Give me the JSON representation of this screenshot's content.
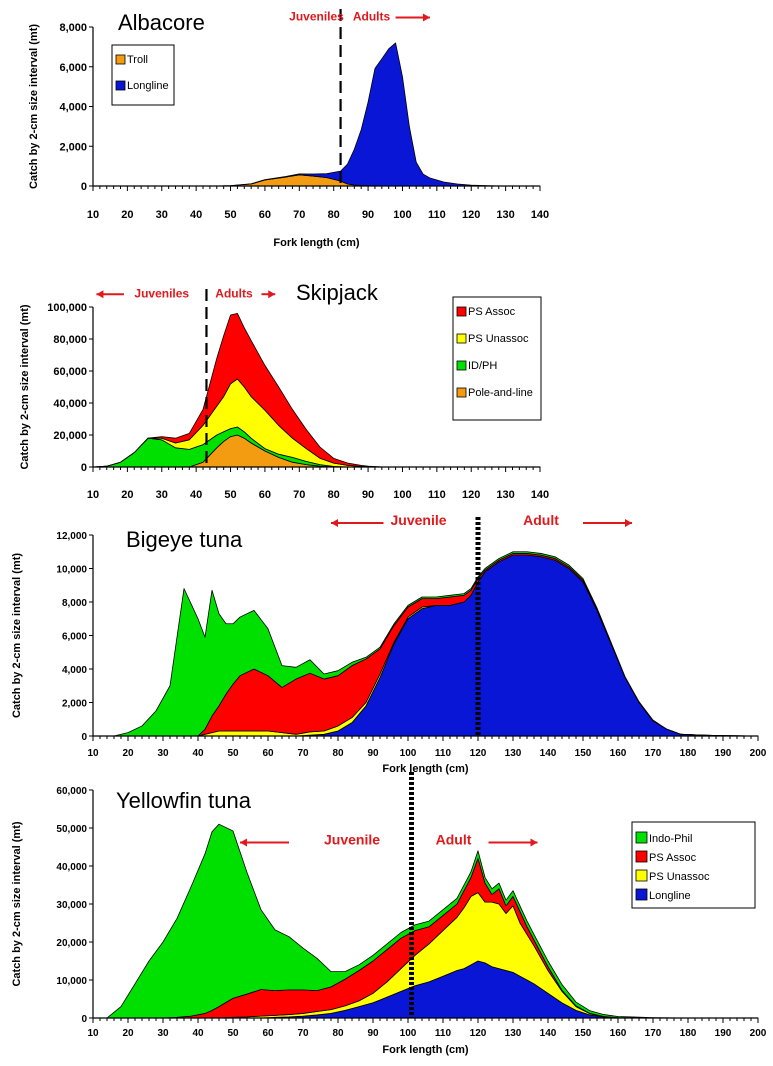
{
  "chart_data": [
    {
      "type": "area",
      "title": "Albacore",
      "xlabel": "Fork length (cm)",
      "ylabel": "Catch by 2-cm size interval (mt)",
      "xlim": [
        10,
        140
      ],
      "ylim": [
        0,
        8000
      ],
      "xticks": [
        10,
        20,
        30,
        40,
        50,
        60,
        70,
        80,
        90,
        100,
        110,
        120,
        130,
        140
      ],
      "yticks": [
        0,
        2000,
        4000,
        6000,
        8000
      ],
      "ytick_labels": [
        "0",
        "2,000",
        "4,000",
        "6,000",
        "8,000"
      ],
      "stack_order": [
        "Troll",
        "Longline"
      ],
      "legend": [
        "Troll",
        "Longline"
      ],
      "legend_labels": [
        "Troll",
        "Longline"
      ],
      "colors": {
        "Troll": "#f39c12",
        "Longline": "#0a16d6"
      },
      "boundary_x": 82,
      "annotations": [
        {
          "text": "Juveniles",
          "x": 75,
          "y_frac": 1.04,
          "size": 12,
          "anchor": "middle"
        },
        {
          "text": "Adults",
          "x": 91,
          "y_frac": 1.04,
          "size": 12,
          "anchor": "middle"
        }
      ],
      "arrows": [
        {
          "x1": 98,
          "x2": 108,
          "y_frac": 1.06
        }
      ],
      "x": [
        10,
        20,
        30,
        40,
        46,
        50,
        56,
        60,
        66,
        70,
        74,
        78,
        82,
        84,
        86,
        88,
        90,
        92,
        94,
        96,
        98,
        100,
        102,
        104,
        106,
        108,
        110,
        112,
        116,
        120,
        126,
        130,
        140
      ],
      "series": [
        {
          "name": "Troll",
          "values": [
            0,
            0,
            0,
            0,
            0,
            20,
            100,
            300,
            450,
            560,
            500,
            420,
            250,
            100,
            50,
            30,
            20,
            10,
            0,
            0,
            0,
            0,
            0,
            0,
            0,
            0,
            0,
            0,
            0,
            0,
            0,
            0,
            0
          ]
        },
        {
          "name": "Longline",
          "values": [
            0,
            0,
            0,
            0,
            0,
            0,
            10,
            20,
            30,
            50,
            100,
            200,
            500,
            1000,
            1800,
            2800,
            4200,
            5900,
            6400,
            6900,
            7200,
            5500,
            3000,
            1200,
            600,
            400,
            300,
            200,
            100,
            40,
            10,
            0,
            0
          ]
        }
      ]
    },
    {
      "type": "area",
      "title": "Skipjack",
      "xlabel": "",
      "ylabel": "Catch by 2-cm size interval (mt)",
      "xlim": [
        10,
        140
      ],
      "ylim": [
        0,
        100000
      ],
      "xticks": [
        10,
        20,
        30,
        40,
        50,
        60,
        70,
        80,
        90,
        100,
        110,
        120,
        130,
        140
      ],
      "yticks": [
        0,
        20000,
        40000,
        60000,
        80000,
        100000
      ],
      "ytick_labels": [
        "0",
        "20,000",
        "40,000",
        "60,000",
        "80,000",
        "100,000"
      ],
      "stack_order": [
        "Pole-and-line",
        "ID/PH",
        "PS Unassoc",
        "PS Assoc"
      ],
      "legend": [
        "PS Assoc",
        "PS Unassoc",
        "ID/PH",
        "Pole-and-line"
      ],
      "legend_labels": [
        "PS Assoc",
        "PS Unassoc",
        "ID/PH",
        "Pole-and-line"
      ],
      "colors": {
        "PS Assoc": "#ff0000",
        "PS Unassoc": "#ffff00",
        "ID/PH": "#00e000",
        "Pole-and-line": "#f39c12"
      },
      "boundary_x": 43,
      "annotations": [
        {
          "text": "Juveniles",
          "x": 30,
          "y_frac": 1.06,
          "size": 12,
          "anchor": "middle"
        },
        {
          "text": "Adults",
          "x": 51,
          "y_frac": 1.06,
          "size": 12,
          "anchor": "middle"
        }
      ],
      "arrows": [
        {
          "x1": 19,
          "x2": 11,
          "y_frac": 1.08
        },
        {
          "x1": 59,
          "x2": 63,
          "y_frac": 1.08
        }
      ],
      "x": [
        10,
        14,
        18,
        22,
        26,
        30,
        34,
        38,
        42,
        46,
        48,
        50,
        52,
        54,
        56,
        60,
        64,
        68,
        72,
        76,
        80,
        84,
        88,
        90,
        94,
        100,
        110,
        140
      ],
      "series": [
        {
          "name": "Pole-and-line",
          "values": [
            0,
            0,
            0,
            0,
            0,
            0,
            0,
            0,
            3000,
            12000,
            16000,
            19000,
            20000,
            18000,
            15000,
            10000,
            6000,
            3000,
            1500,
            500,
            200,
            0,
            0,
            0,
            0,
            0,
            0,
            0
          ]
        },
        {
          "name": "ID/PH",
          "values": [
            0,
            500,
            3000,
            9000,
            18000,
            17000,
            12000,
            11000,
            11000,
            8000,
            6000,
            5000,
            5000,
            4000,
            3000,
            1500,
            2000,
            3000,
            2000,
            1000,
            200,
            0,
            0,
            0,
            0,
            0,
            0,
            0
          ]
        },
        {
          "name": "PS Unassoc",
          "values": [
            0,
            0,
            0,
            0,
            0,
            1000,
            3000,
            6000,
            12000,
            18000,
            22000,
            28000,
            30000,
            28000,
            26000,
            24000,
            18000,
            12000,
            8000,
            4000,
            2000,
            1000,
            400,
            200,
            0,
            0,
            0,
            0
          ]
        },
        {
          "name": "PS Assoc",
          "values": [
            0,
            0,
            0,
            0,
            0,
            1000,
            3000,
            4000,
            10000,
            30000,
            38000,
            43000,
            41000,
            37000,
            35000,
            28000,
            24000,
            18000,
            12000,
            7000,
            3000,
            1500,
            600,
            300,
            100,
            0,
            0,
            0
          ]
        }
      ]
    },
    {
      "type": "area",
      "title": "Bigeye tuna",
      "xlabel": "Fork length (cm)",
      "ylabel": "Catch by 2-cm size interval (mt)",
      "xlim": [
        10,
        200
      ],
      "ylim": [
        0,
        12000
      ],
      "xticks": [
        10,
        20,
        30,
        40,
        50,
        60,
        70,
        80,
        90,
        100,
        110,
        120,
        130,
        140,
        150,
        160,
        170,
        180,
        190,
        200
      ],
      "yticks": [
        0,
        2000,
        4000,
        6000,
        8000,
        10000,
        12000
      ],
      "ytick_labels": [
        "0",
        "2,000",
        "4,000",
        "6,000",
        "8,000",
        "10,000",
        "12,000"
      ],
      "stack_order": [
        "Longline",
        "PS Unassoc",
        "PS Assoc",
        "Indo-Phil"
      ],
      "legend": [],
      "colors": {
        "Indo-Phil": "#00e000",
        "PS Assoc": "#ff0000",
        "PS Unassoc": "#ffff00",
        "Longline": "#0a16d6"
      },
      "boundary_x": 120,
      "annotations": [
        {
          "text": "Juvenile",
          "x": 103,
          "y_frac": 1.05,
          "size": 14,
          "anchor": "middle"
        },
        {
          "text": "Adult",
          "x": 138,
          "y_frac": 1.05,
          "size": 14,
          "anchor": "middle"
        }
      ],
      "arrows": [
        {
          "x1": 93,
          "x2": 78,
          "y_frac": 1.06
        },
        {
          "x1": 150,
          "x2": 164,
          "y_frac": 1.06
        }
      ],
      "x": [
        10,
        16,
        20,
        24,
        28,
        32,
        36,
        40,
        42,
        44,
        46,
        48,
        50,
        52,
        56,
        60,
        64,
        68,
        72,
        76,
        80,
        84,
        88,
        92,
        96,
        100,
        104,
        108,
        112,
        116,
        118,
        120,
        122,
        126,
        130,
        134,
        138,
        142,
        146,
        150,
        154,
        158,
        162,
        166,
        170,
        174,
        178,
        184,
        190,
        200
      ],
      "series": [
        {
          "name": "Longline",
          "values": [
            0,
            0,
            0,
            0,
            0,
            0,
            0,
            0,
            0,
            0,
            0,
            0,
            0,
            0,
            0,
            0,
            0,
            0,
            50,
            100,
            300,
            800,
            1800,
            3500,
            5500,
            7000,
            7600,
            7800,
            7800,
            8000,
            8400,
            9200,
            9800,
            10400,
            10800,
            10800,
            10700,
            10500,
            10000,
            9200,
            7500,
            5500,
            3500,
            2000,
            900,
            400,
            100,
            50,
            20,
            0
          ]
        },
        {
          "name": "PS Unassoc",
          "values": [
            0,
            0,
            0,
            0,
            0,
            0,
            0,
            0,
            100,
            200,
            300,
            300,
            300,
            300,
            300,
            300,
            200,
            100,
            200,
            200,
            300,
            300,
            200,
            200,
            100,
            100,
            100,
            0,
            0,
            0,
            0,
            0,
            0,
            0,
            0,
            0,
            0,
            0,
            0,
            0,
            0,
            0,
            0,
            0,
            0,
            0,
            0,
            0,
            0,
            0
          ]
        },
        {
          "name": "PS Assoc",
          "values": [
            0,
            0,
            0,
            0,
            0,
            0,
            0,
            0,
            300,
            1000,
            1500,
            2200,
            2800,
            3300,
            3700,
            3300,
            2700,
            3300,
            3500,
            3100,
            3000,
            3100,
            2600,
            1500,
            1000,
            600,
            500,
            400,
            500,
            400,
            300,
            200,
            100,
            100,
            100,
            100,
            100,
            100,
            100,
            100,
            50,
            50,
            0,
            0,
            0,
            0,
            0,
            0,
            0,
            0
          ]
        },
        {
          "name": "Indo-Phil",
          "values": [
            0,
            0,
            200,
            600,
            1500,
            3000,
            8800,
            7000,
            5500,
            7500,
            5500,
            4200,
            3600,
            3500,
            3500,
            2800,
            1300,
            700,
            800,
            300,
            300,
            200,
            100,
            100,
            100,
            100,
            100,
            100,
            100,
            100,
            100,
            100,
            100,
            100,
            100,
            100,
            100,
            100,
            100,
            100,
            100,
            50,
            50,
            50,
            50,
            0,
            0,
            0,
            0,
            0
          ]
        }
      ]
    },
    {
      "type": "area",
      "title": "Yellowfin tuna",
      "xlabel": "Fork length (cm)",
      "ylabel": "Catch by 2-cm size interval (mt)",
      "xlim": [
        10,
        200
      ],
      "ylim": [
        0,
        60000
      ],
      "xticks": [
        10,
        20,
        30,
        40,
        50,
        60,
        70,
        80,
        90,
        100,
        110,
        120,
        130,
        140,
        150,
        160,
        170,
        180,
        190,
        200
      ],
      "yticks": [
        0,
        10000,
        20000,
        30000,
        40000,
        50000,
        60000
      ],
      "ytick_labels": [
        "0",
        "10,000",
        "20,000",
        "30,000",
        "40,000",
        "50,000",
        "60,000"
      ],
      "stack_order": [
        "Longline",
        "PS Unassoc",
        "PS Assoc",
        "Indo-Phil"
      ],
      "legend": [
        "Indo-Phil",
        "PS Assoc",
        "PS Unassoc",
        "Longline"
      ],
      "legend_labels": [
        "Indo-Phil",
        "PS Assoc",
        "PS Unassoc",
        "Longline"
      ],
      "colors": {
        "Indo-Phil": "#00e000",
        "PS Assoc": "#ff0000",
        "PS Unassoc": "#ffff00",
        "Longline": "#0a16d6"
      },
      "boundary_x": 101,
      "annotations": [
        {
          "text": "Juvenile",
          "x": 84,
          "y_frac": 0.76,
          "size": 14,
          "anchor": "middle"
        },
        {
          "text": "Adult",
          "x": 113,
          "y_frac": 0.76,
          "size": 14,
          "anchor": "middle"
        }
      ],
      "arrows": [
        {
          "x1": 66,
          "x2": 52,
          "y_frac": 0.77
        },
        {
          "x1": 123,
          "x2": 137,
          "y_frac": 0.77
        }
      ],
      "x": [
        10,
        14,
        18,
        22,
        26,
        30,
        34,
        38,
        42,
        44,
        46,
        50,
        54,
        58,
        62,
        66,
        70,
        74,
        78,
        82,
        86,
        90,
        94,
        98,
        102,
        106,
        110,
        114,
        116,
        118,
        120,
        122,
        124,
        126,
        128,
        130,
        132,
        134,
        136,
        140,
        144,
        148,
        152,
        156,
        160,
        170,
        180,
        200
      ],
      "series": [
        {
          "name": "Longline",
          "values": [
            0,
            0,
            0,
            0,
            0,
            0,
            0,
            0,
            0,
            0,
            0,
            0,
            0,
            0,
            200,
            300,
            500,
            800,
            1200,
            2000,
            3000,
            4000,
            5500,
            7000,
            8500,
            9500,
            11000,
            12500,
            13000,
            14000,
            15000,
            14500,
            13500,
            13000,
            12500,
            12000,
            11000,
            10000,
            9000,
            6500,
            4000,
            2000,
            800,
            300,
            100,
            0,
            0,
            0
          ]
        },
        {
          "name": "PS Unassoc",
          "values": [
            0,
            0,
            0,
            0,
            0,
            0,
            0,
            0,
            0,
            0,
            0,
            200,
            300,
            500,
            500,
            600,
            700,
            900,
            1000,
            1200,
            1500,
            2500,
            4000,
            6000,
            8000,
            10000,
            12000,
            14000,
            16000,
            18000,
            18000,
            16000,
            17000,
            17000,
            15000,
            17500,
            14000,
            12000,
            10000,
            6000,
            3000,
            1000,
            300,
            100,
            0,
            0,
            0,
            0
          ]
        },
        {
          "name": "PS Assoc",
          "values": [
            0,
            0,
            0,
            0,
            0,
            0,
            200,
            500,
            1200,
            2000,
            3000,
            5000,
            6000,
            7000,
            6500,
            6500,
            6200,
            5500,
            6000,
            7000,
            8000,
            8500,
            8500,
            8000,
            6500,
            4500,
            4000,
            3500,
            4500,
            5000,
            9000,
            5000,
            2000,
            4000,
            2000,
            2500,
            3000,
            2000,
            1500,
            1000,
            300,
            200,
            100,
            0,
            0,
            0,
            0,
            0
          ]
        },
        {
          "name": "Indo-Phil",
          "values": [
            0,
            0,
            3000,
            9000,
            15000,
            20000,
            26000,
            34000,
            42000,
            47000,
            48000,
            44000,
            32000,
            21000,
            16000,
            14000,
            11000,
            8500,
            4000,
            2000,
            1500,
            1500,
            1500,
            1500,
            1500,
            1500,
            1500,
            1500,
            1500,
            1500,
            2000,
            1500,
            1500,
            1500,
            1500,
            1500,
            1500,
            1500,
            1500,
            1500,
            1500,
            1000,
            700,
            500,
            300,
            100,
            0,
            0
          ]
        }
      ]
    }
  ]
}
